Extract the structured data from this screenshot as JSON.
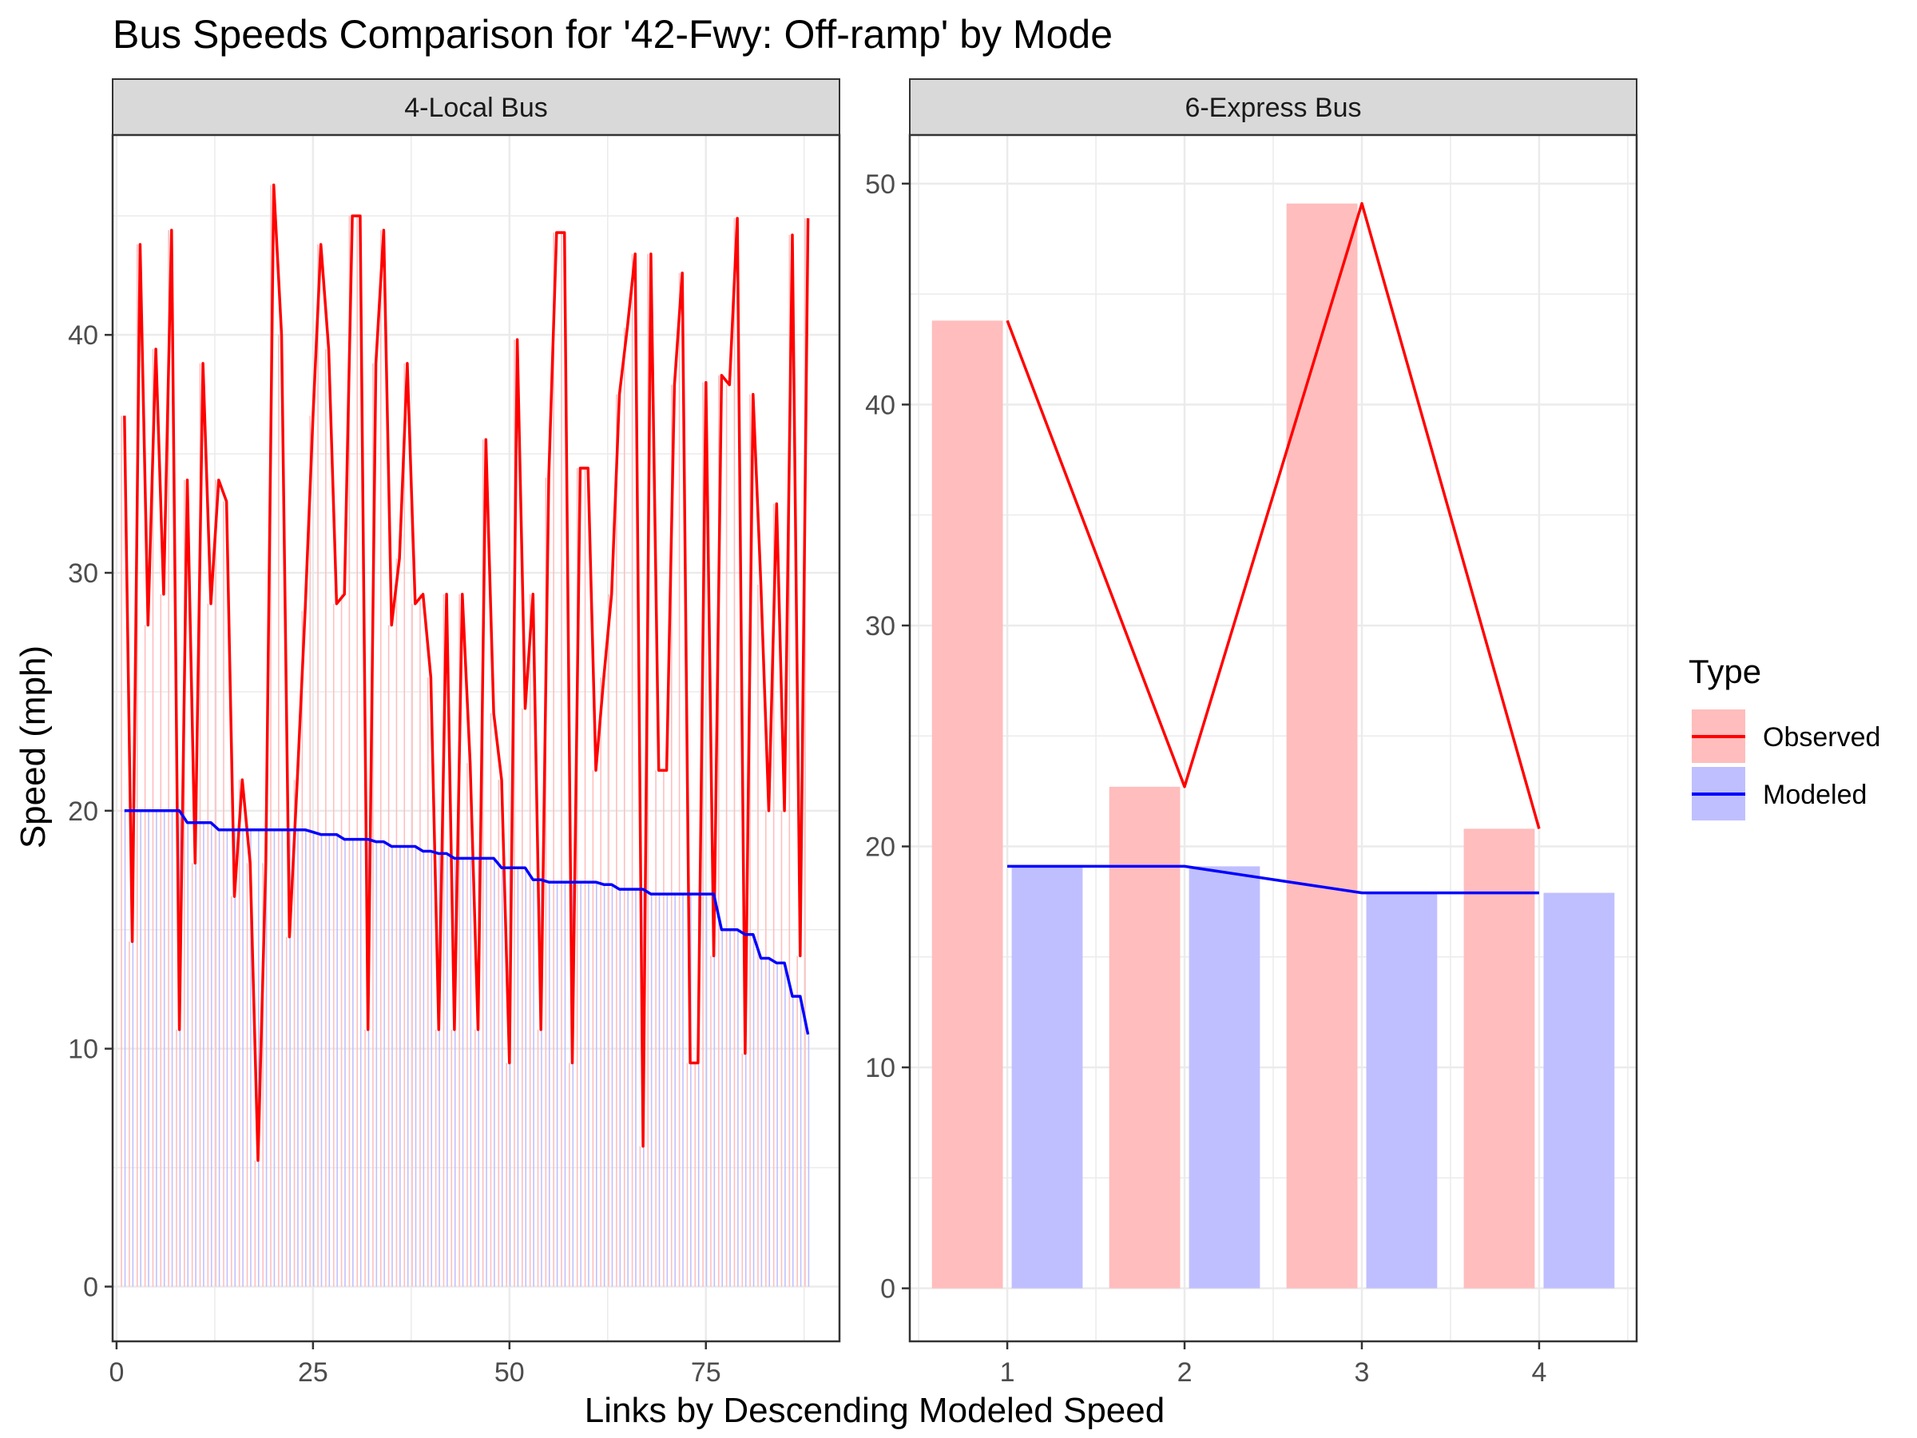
{
  "colors": {
    "observed": "#ff0000",
    "modeled": "#0000ff",
    "observed_fill": "#ffbdbd",
    "modeled_fill": "#bfbfff",
    "strip_bg": "#d9d9d9",
    "grid": "#ebebeb"
  },
  "chart_data": {
    "type": "bar+line",
    "title": "Bus Speeds Comparison for '42-Fwy: Off-ramp' by Mode",
    "xlabel": "Links by Descending Modeled Speed",
    "ylabel": "Speed (mph)",
    "legend": {
      "title": "Type",
      "position": "right",
      "entries": [
        "Observed",
        "Modeled"
      ]
    },
    "facets": [
      {
        "label": "4-Local Bus",
        "xlim": [
          -0.5,
          92
        ],
        "ylim": [
          -2.3,
          48.4
        ],
        "x_ticks": [
          0,
          25,
          50,
          75
        ],
        "y_ticks": [
          0,
          10,
          20,
          30,
          40
        ],
        "observed": [
          36.6,
          14.5,
          43.8,
          27.8,
          39.4,
          29.1,
          44.4,
          10.8,
          33.9,
          17.8,
          38.8,
          28.7,
          33.9,
          33.0,
          16.4,
          21.3,
          17.8,
          5.3,
          17.8,
          46.3,
          40.0,
          14.7,
          21.3,
          28.4,
          36.6,
          43.8,
          39.4,
          28.7,
          29.1,
          45.0,
          45.0,
          10.8,
          38.8,
          44.4,
          27.8,
          30.6,
          38.8,
          28.7,
          29.1,
          25.6,
          10.8,
          29.1,
          10.8,
          29.1,
          22.0,
          10.8,
          35.6,
          24.1,
          21.3,
          9.4,
          39.8,
          24.3,
          29.1,
          10.8,
          34.0,
          44.3,
          44.3,
          9.4,
          34.4,
          34.4,
          21.7,
          25.6,
          29.1,
          37.5,
          40.3,
          43.4,
          5.9,
          43.4,
          21.7,
          21.7,
          37.9,
          42.6,
          9.4,
          9.4,
          38.0,
          13.9,
          38.3,
          37.9,
          44.9,
          9.8,
          37.5,
          29.5,
          20.0,
          32.9,
          20.0,
          44.2,
          13.9,
          44.9
        ],
        "modeled": [
          20.0,
          20.0,
          20.0,
          20.0,
          20.0,
          20.0,
          20.0,
          20.0,
          19.5,
          19.5,
          19.5,
          19.5,
          19.2,
          19.2,
          19.2,
          19.2,
          19.2,
          19.2,
          19.2,
          19.2,
          19.2,
          19.2,
          19.2,
          19.2,
          19.1,
          19.0,
          19.0,
          19.0,
          18.8,
          18.8,
          18.8,
          18.8,
          18.7,
          18.7,
          18.5,
          18.5,
          18.5,
          18.5,
          18.3,
          18.3,
          18.2,
          18.2,
          18.0,
          18.0,
          18.0,
          18.0,
          18.0,
          18.0,
          17.6,
          17.6,
          17.6,
          17.6,
          17.1,
          17.1,
          17.0,
          17.0,
          17.0,
          17.0,
          17.0,
          17.0,
          17.0,
          16.9,
          16.9,
          16.7,
          16.7,
          16.7,
          16.7,
          16.5,
          16.5,
          16.5,
          16.5,
          16.5,
          16.5,
          16.5,
          16.5,
          16.5,
          15.0,
          15.0,
          15.0,
          14.8,
          14.8,
          13.8,
          13.8,
          13.6,
          13.6,
          12.2,
          12.2,
          10.6
        ]
      },
      {
        "label": "6-Express Bus",
        "xlim": [
          0.45,
          4.55
        ],
        "ylim": [
          -2.4,
          52.2
        ],
        "x_ticks": [
          1,
          2,
          3,
          4
        ],
        "y_ticks": [
          0,
          10,
          20,
          30,
          40,
          50
        ],
        "observed": [
          43.8,
          22.7,
          49.1,
          20.8
        ],
        "modeled": [
          19.1,
          19.1,
          17.9,
          17.9
        ]
      }
    ]
  }
}
